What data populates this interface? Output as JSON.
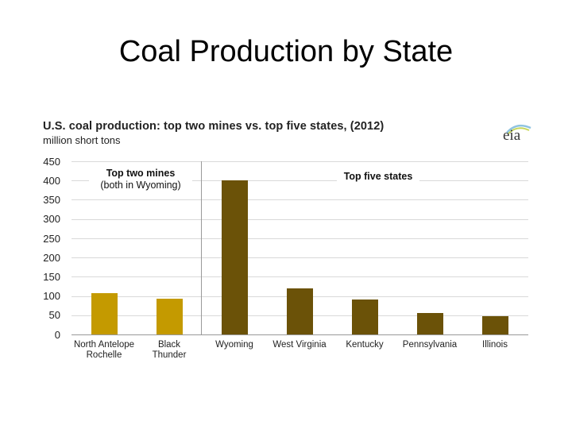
{
  "slide": {
    "title": "Coal Production by State"
  },
  "chart_header": {
    "title": "U.S. coal production:  top two mines vs. top five states, (2012)",
    "subtitle": "million short tons",
    "logo_text": "eia"
  },
  "annotations": {
    "mines_title": "Top two mines",
    "mines_sub": "(both in Wyoming)",
    "states_title": "Top five states"
  },
  "colors": {
    "mines_bar": "#C49A00",
    "states_bar": "#6B5208",
    "gridline": "#D9D9D9",
    "axis": "#999999"
  },
  "chart_data": {
    "type": "bar",
    "title": "U.S. coal production: top two mines vs. top five states, (2012)",
    "subtitle": "million short tons",
    "xlabel": "",
    "ylabel": "million short tons",
    "ylim": [
      0,
      450
    ],
    "yticks": [
      0,
      50,
      100,
      150,
      200,
      250,
      300,
      350,
      400,
      450
    ],
    "grid": true,
    "legend": "none",
    "categories": [
      "North Antelope Rochelle",
      "Black Thunder",
      "Wyoming",
      "West Virginia",
      "Kentucky",
      "Pennsylvania",
      "Illinois"
    ],
    "groups": [
      {
        "name": "Top two mines (both in Wyoming)",
        "categories": [
          "North Antelope Rochelle",
          "Black Thunder"
        ],
        "values": [
          107,
          93
        ],
        "color": "#C49A00"
      },
      {
        "name": "Top five states",
        "categories": [
          "Wyoming",
          "West Virginia",
          "Kentucky",
          "Pennsylvania",
          "Illinois"
        ],
        "values": [
          401,
          120,
          91,
          55,
          48
        ],
        "color": "#6B5208"
      }
    ],
    "values": [
      107,
      93,
      401,
      120,
      91,
      55,
      48
    ]
  },
  "xlabels": [
    {
      "line1": "North Antelope",
      "line2": "Rochelle"
    },
    {
      "line1": "Black",
      "line2": "Thunder"
    },
    {
      "line1": "Wyoming",
      "line2": ""
    },
    {
      "line1": "West Virginia",
      "line2": ""
    },
    {
      "line1": "Kentucky",
      "line2": ""
    },
    {
      "line1": "Pennsylvania",
      "line2": ""
    },
    {
      "line1": "Illinois",
      "line2": ""
    }
  ],
  "yticks": [
    "450",
    "400",
    "350",
    "300",
    "250",
    "200",
    "150",
    "100",
    "50",
    "0"
  ]
}
